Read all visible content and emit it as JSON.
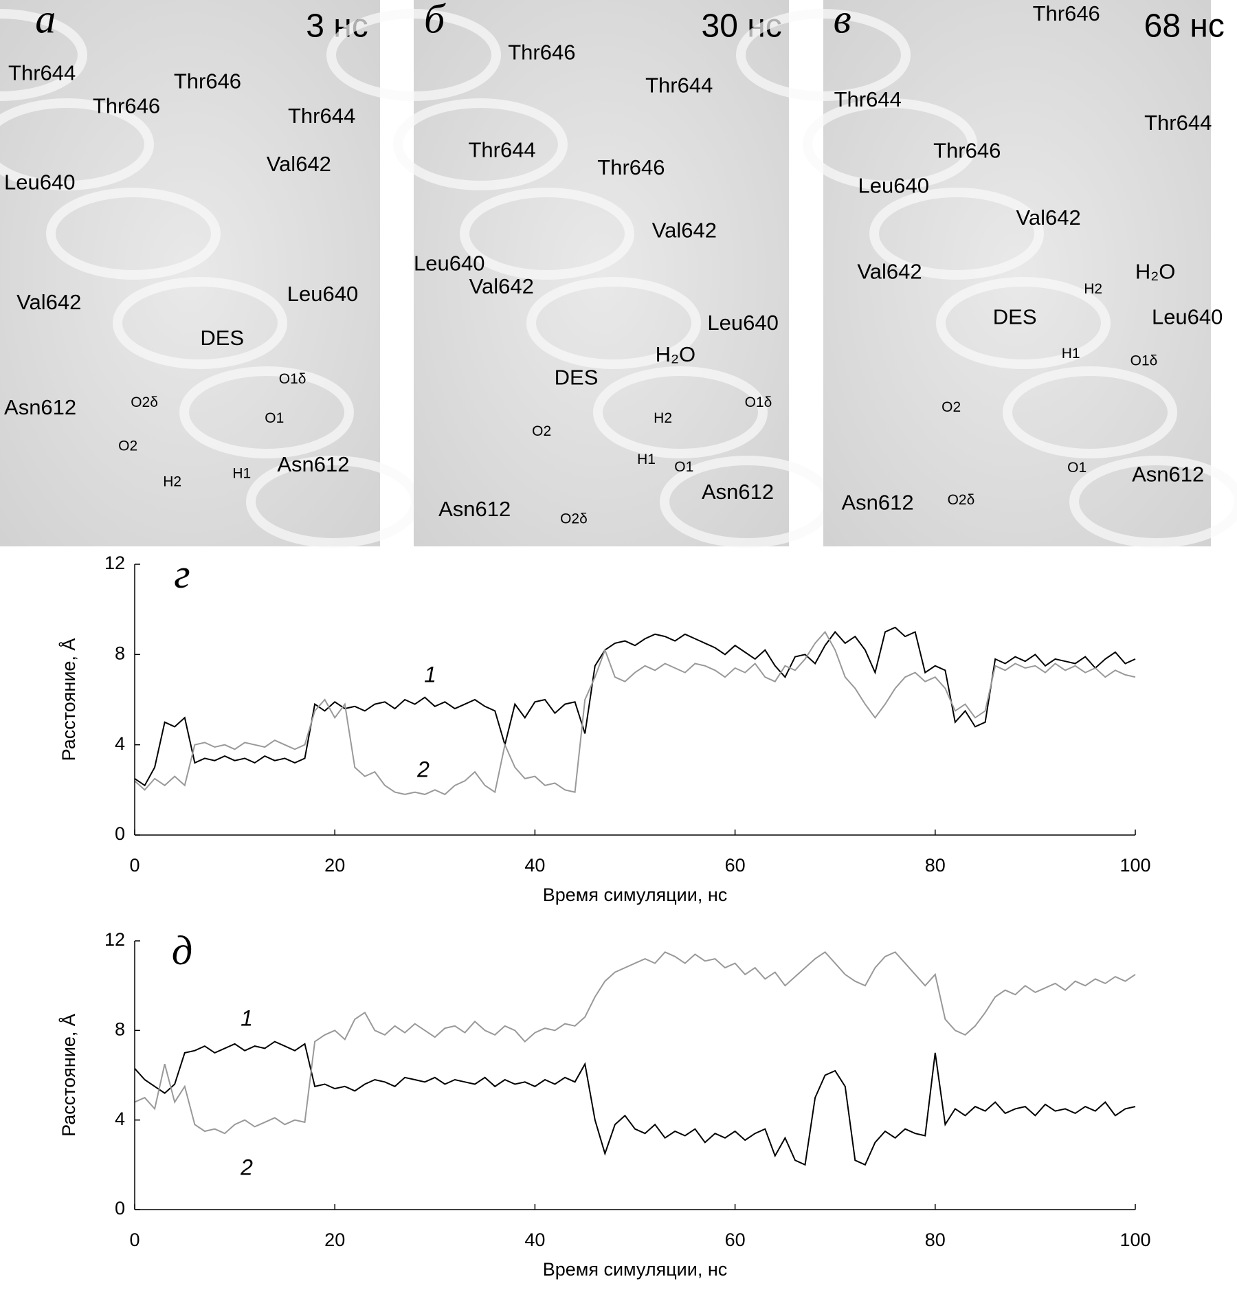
{
  "panels": [
    {
      "letter": "а",
      "time": "3 нс",
      "labels": [
        "Thr644",
        "Thr646",
        "Thr646",
        "Thr644",
        "Leu640",
        "Val642",
        "Val642",
        "Leu640",
        "DES",
        "Asn612",
        "O2δ",
        "O1δ",
        "O1",
        "O2",
        "H2",
        "H1",
        "Asn612"
      ]
    },
    {
      "letter": "б",
      "time": "30 нс",
      "labels": [
        "Thr646",
        "Thr644",
        "Thr644",
        "Thr646",
        "Leu640",
        "Val642",
        "Val642",
        "Leu640",
        "H₂O",
        "DES",
        "H2",
        "O1δ",
        "O2",
        "H1",
        "O1",
        "Asn612",
        "Asn612",
        "O2δ"
      ]
    },
    {
      "letter": "в",
      "time": "68 нс",
      "labels": [
        "Thr646",
        "Thr644",
        "Thr646",
        "Thr644",
        "Leu640",
        "Val642",
        "Val642",
        "H₂O",
        "H2",
        "Leu640",
        "DES",
        "H1",
        "O1δ",
        "O2",
        "O1",
        "Asn612",
        "Asn612",
        "O2δ"
      ]
    }
  ],
  "chart_data": [
    {
      "type": "line",
      "title": "г",
      "xlabel": "Время симуляции, нс",
      "ylabel": "Расстояние, Å",
      "xlim": [
        0,
        100
      ],
      "xticks": [
        0,
        20,
        40,
        60,
        80,
        100
      ],
      "ylim": [
        0,
        12
      ],
      "yticks": [
        0,
        4,
        8,
        12
      ],
      "annotations": [
        "1",
        "2"
      ],
      "x": [
        0,
        1,
        2,
        3,
        4,
        5,
        6,
        7,
        8,
        9,
        10,
        11,
        12,
        13,
        14,
        15,
        16,
        17,
        18,
        19,
        20,
        21,
        22,
        23,
        24,
        25,
        26,
        27,
        28,
        29,
        30,
        31,
        32,
        33,
        34,
        35,
        36,
        37,
        38,
        39,
        40,
        41,
        42,
        43,
        44,
        45,
        46,
        47,
        48,
        49,
        50,
        51,
        52,
        53,
        54,
        55,
        56,
        57,
        58,
        59,
        60,
        61,
        62,
        63,
        64,
        65,
        66,
        67,
        68,
        69,
        70,
        71,
        72,
        73,
        74,
        75,
        76,
        77,
        78,
        79,
        80,
        81,
        82,
        83,
        84,
        85,
        86,
        87,
        88,
        89,
        90,
        91,
        92,
        93,
        94,
        95,
        96,
        97,
        98,
        99,
        100
      ],
      "series": [
        {
          "name": "1",
          "color": "#000000",
          "values": [
            2.5,
            2.2,
            3.0,
            5.0,
            4.8,
            5.2,
            3.2,
            3.4,
            3.3,
            3.5,
            3.3,
            3.4,
            3.2,
            3.5,
            3.3,
            3.4,
            3.2,
            3.4,
            5.8,
            5.5,
            5.9,
            5.6,
            5.7,
            5.5,
            5.8,
            5.9,
            5.6,
            6.0,
            5.8,
            6.1,
            5.7,
            5.9,
            5.6,
            5.8,
            6.0,
            5.7,
            5.5,
            4.0,
            5.8,
            5.2,
            5.9,
            6.0,
            5.4,
            5.8,
            5.9,
            4.5,
            7.5,
            8.2,
            8.5,
            8.6,
            8.4,
            8.7,
            8.9,
            8.8,
            8.6,
            8.9,
            8.7,
            8.5,
            8.3,
            8.0,
            8.4,
            8.1,
            7.8,
            8.2,
            7.5,
            7.0,
            7.9,
            8.0,
            7.6,
            8.4,
            9.0,
            8.5,
            8.8,
            8.2,
            7.2,
            9.0,
            9.2,
            8.8,
            9.0,
            7.2,
            7.5,
            7.3,
            5.0,
            5.5,
            4.8,
            5.0,
            7.8,
            7.6,
            7.9,
            7.7,
            8.0,
            7.5,
            7.8,
            7.7,
            7.6,
            7.9,
            7.4,
            7.8,
            8.1,
            7.6,
            7.8
          ]
        },
        {
          "name": "2",
          "color": "#999999",
          "values": [
            2.4,
            2.0,
            2.5,
            2.2,
            2.6,
            2.2,
            4.0,
            4.1,
            3.9,
            4.0,
            3.8,
            4.1,
            4.0,
            3.9,
            4.2,
            4.0,
            3.8,
            4.0,
            5.5,
            6.0,
            5.2,
            5.8,
            3.0,
            2.6,
            2.8,
            2.2,
            1.9,
            1.8,
            1.9,
            1.8,
            2.0,
            1.8,
            2.2,
            2.4,
            2.8,
            2.2,
            1.9,
            4.0,
            3.0,
            2.5,
            2.6,
            2.2,
            2.3,
            2.0,
            1.9,
            6.0,
            7.0,
            8.2,
            7.0,
            6.8,
            7.2,
            7.5,
            7.3,
            7.6,
            7.4,
            7.2,
            7.6,
            7.5,
            7.3,
            7.0,
            7.4,
            7.2,
            7.6,
            7.0,
            6.8,
            7.5,
            7.3,
            7.8,
            8.5,
            9.0,
            8.2,
            7.0,
            6.5,
            5.8,
            5.2,
            5.8,
            6.5,
            7.0,
            7.2,
            6.8,
            7.0,
            6.5,
            5.5,
            5.8,
            5.2,
            5.5,
            7.5,
            7.3,
            7.6,
            7.4,
            7.5,
            7.2,
            7.6,
            7.3,
            7.5,
            7.2,
            7.4,
            7.0,
            7.3,
            7.1,
            7.0
          ]
        }
      ]
    },
    {
      "type": "line",
      "title": "д",
      "xlabel": "Время симуляции, нс",
      "ylabel": "Расстояние, Å",
      "xlim": [
        0,
        100
      ],
      "xticks": [
        0,
        20,
        40,
        60,
        80,
        100
      ],
      "ylim": [
        0,
        12
      ],
      "yticks": [
        0,
        4,
        8,
        12
      ],
      "annotations": [
        "1",
        "2"
      ],
      "x": [
        0,
        1,
        2,
        3,
        4,
        5,
        6,
        7,
        8,
        9,
        10,
        11,
        12,
        13,
        14,
        15,
        16,
        17,
        18,
        19,
        20,
        21,
        22,
        23,
        24,
        25,
        26,
        27,
        28,
        29,
        30,
        31,
        32,
        33,
        34,
        35,
        36,
        37,
        38,
        39,
        40,
        41,
        42,
        43,
        44,
        45,
        46,
        47,
        48,
        49,
        50,
        51,
        52,
        53,
        54,
        55,
        56,
        57,
        58,
        59,
        60,
        61,
        62,
        63,
        64,
        65,
        66,
        67,
        68,
        69,
        70,
        71,
        72,
        73,
        74,
        75,
        76,
        77,
        78,
        79,
        80,
        81,
        82,
        83,
        84,
        85,
        86,
        87,
        88,
        89,
        90,
        91,
        92,
        93,
        94,
        95,
        96,
        97,
        98,
        99,
        100
      ],
      "series": [
        {
          "name": "1",
          "color": "#000000",
          "values": [
            6.3,
            5.8,
            5.5,
            5.2,
            5.6,
            7.0,
            7.1,
            7.3,
            7.0,
            7.2,
            7.4,
            7.1,
            7.3,
            7.2,
            7.5,
            7.3,
            7.1,
            7.4,
            5.5,
            5.6,
            5.4,
            5.5,
            5.3,
            5.6,
            5.8,
            5.7,
            5.5,
            5.9,
            5.8,
            5.7,
            5.9,
            5.6,
            5.8,
            5.7,
            5.6,
            5.9,
            5.5,
            5.8,
            5.6,
            5.7,
            5.5,
            5.8,
            5.6,
            5.9,
            5.7,
            6.5,
            4.0,
            2.5,
            3.8,
            4.2,
            3.6,
            3.4,
            3.8,
            3.2,
            3.5,
            3.3,
            3.6,
            3.0,
            3.4,
            3.2,
            3.5,
            3.1,
            3.4,
            3.6,
            2.4,
            3.2,
            2.2,
            2.0,
            5.0,
            6.0,
            6.2,
            5.5,
            2.2,
            2.0,
            3.0,
            3.5,
            3.2,
            3.6,
            3.4,
            3.3,
            7.0,
            3.8,
            4.5,
            4.2,
            4.6,
            4.4,
            4.8,
            4.3,
            4.5,
            4.6,
            4.2,
            4.7,
            4.4,
            4.5,
            4.3,
            4.6,
            4.4,
            4.8,
            4.2,
            4.5,
            4.6
          ]
        },
        {
          "name": "2",
          "color": "#999999",
          "values": [
            4.8,
            5.0,
            4.5,
            6.5,
            4.8,
            5.5,
            3.8,
            3.5,
            3.6,
            3.4,
            3.8,
            4.0,
            3.7,
            3.9,
            4.1,
            3.8,
            4.0,
            3.9,
            7.5,
            7.8,
            8.0,
            7.6,
            8.5,
            8.8,
            8.0,
            7.8,
            8.2,
            7.9,
            8.3,
            8.0,
            7.7,
            8.1,
            8.2,
            7.9,
            8.4,
            8.0,
            7.8,
            8.2,
            8.0,
            7.5,
            7.9,
            8.1,
            8.0,
            8.3,
            8.2,
            8.6,
            9.5,
            10.2,
            10.6,
            10.8,
            11.0,
            11.2,
            11.0,
            11.5,
            11.3,
            11.0,
            11.4,
            11.1,
            11.2,
            10.8,
            11.0,
            10.5,
            10.8,
            10.3,
            10.6,
            10.0,
            10.4,
            10.8,
            11.2,
            11.5,
            11.0,
            10.5,
            10.2,
            10.0,
            10.8,
            11.3,
            11.5,
            11.0,
            10.5,
            10.0,
            10.5,
            8.5,
            8.0,
            7.8,
            8.2,
            8.8,
            9.5,
            9.8,
            9.6,
            10.0,
            9.7,
            9.9,
            10.1,
            9.8,
            10.2,
            10.0,
            10.3,
            10.1,
            10.4,
            10.2,
            10.5
          ]
        }
      ]
    }
  ]
}
